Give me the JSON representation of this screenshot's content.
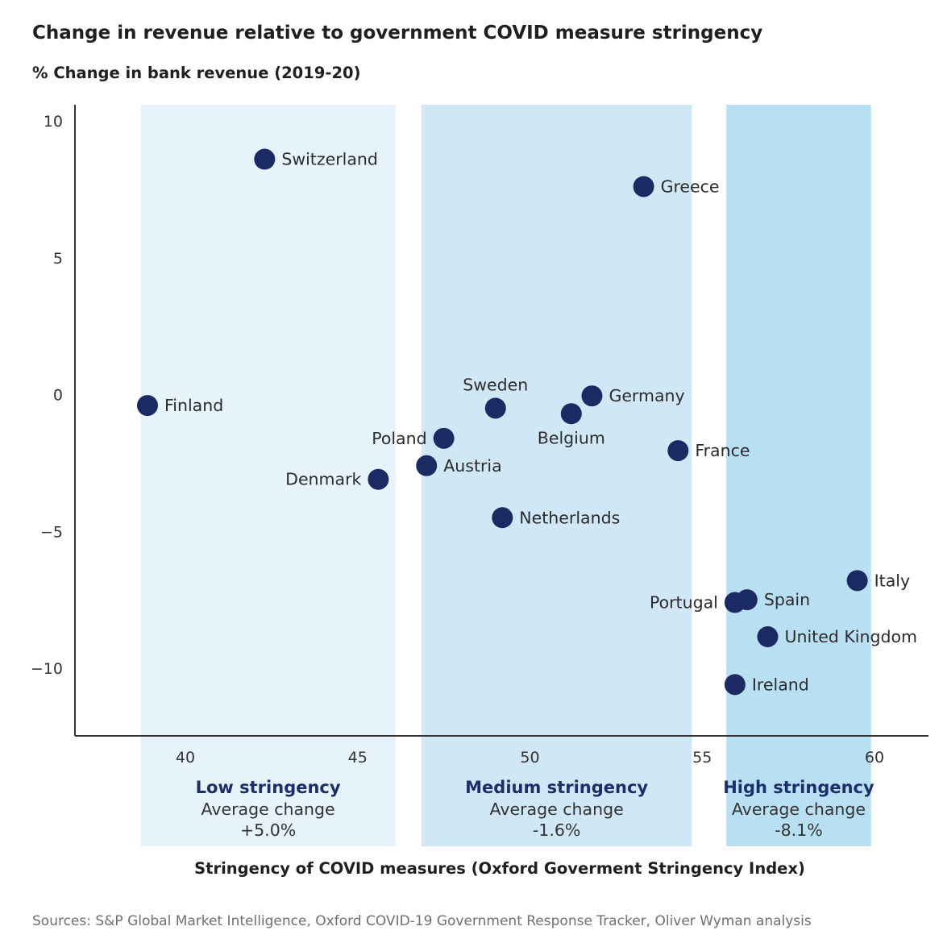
{
  "chart_data": {
    "type": "scatter",
    "title": "Change in revenue relative to government COVID measure stringency",
    "ylabel": "% Change in bank revenue (2019-20)",
    "xlabel": "Stringency of COVID measures (Oxford Goverment Stringency Index)",
    "xlim": [
      36.5,
      61.5
    ],
    "ylim": [
      -12.5,
      10.5
    ],
    "x_ticks": [
      40,
      45,
      50,
      55,
      60
    ],
    "x_tick_labels": [
      "40",
      "45",
      "50",
      "55",
      "60"
    ],
    "y_ticks": [
      10,
      5,
      0,
      -5,
      -10
    ],
    "y_tick_labels": [
      "10",
      "5",
      "0",
      "−5",
      "−10"
    ],
    "grid": false,
    "marker_color": "#1c2a63",
    "points": [
      {
        "label": "Switzerland",
        "x": 42.3,
        "y": 8.6,
        "label_pos": "right"
      },
      {
        "label": "Greece",
        "x": 53.3,
        "y": 7.6,
        "label_pos": "right"
      },
      {
        "label": "Finland",
        "x": 38.9,
        "y": -0.4,
        "label_pos": "right"
      },
      {
        "label": "Sweden",
        "x": 49.0,
        "y": -0.5,
        "label_pos": "above"
      },
      {
        "label": "Germany",
        "x": 51.8,
        "y": -0.05,
        "label_pos": "right"
      },
      {
        "label": "Belgium",
        "x": 51.2,
        "y": -0.7,
        "label_pos": "below"
      },
      {
        "label": "Poland",
        "x": 47.5,
        "y": -1.6,
        "label_pos": "left"
      },
      {
        "label": "France",
        "x": 54.3,
        "y": -2.05,
        "label_pos": "right"
      },
      {
        "label": "Austria",
        "x": 47.0,
        "y": -2.6,
        "label_pos": "right"
      },
      {
        "label": "Denmark",
        "x": 45.6,
        "y": -3.1,
        "label_pos": "left"
      },
      {
        "label": "Netherlands",
        "x": 49.2,
        "y": -4.5,
        "label_pos": "right"
      },
      {
        "label": "Italy",
        "x": 59.5,
        "y": -6.8,
        "label_pos": "right"
      },
      {
        "label": "Spain",
        "x": 56.3,
        "y": -7.5,
        "label_pos": "right"
      },
      {
        "label": "Portugal",
        "x": 55.95,
        "y": -7.6,
        "label_pos": "left"
      },
      {
        "label": "United Kingdom",
        "x": 56.9,
        "y": -8.85,
        "label_pos": "right"
      },
      {
        "label": "Ireland",
        "x": 55.95,
        "y": -10.6,
        "label_pos": "right"
      }
    ],
    "bands": [
      {
        "title": "Low stringency",
        "line1": "Average change",
        "line2": "+5.0%",
        "x_from": 38.7,
        "x_to": 46.1,
        "color": "#e7f3fb"
      },
      {
        "title": "Medium stringency",
        "line1": "Average change",
        "line2": "-1.6%",
        "x_from": 46.85,
        "x_to": 54.7,
        "color": "#d0e8f6"
      },
      {
        "title": "High stringency",
        "line1": "Average change",
        "line2": "-8.1%",
        "x_from": 55.7,
        "x_to": 59.9,
        "color": "#b9dff3"
      }
    ]
  },
  "source": "Sources: S&P Global Market Intelligence, Oxford COVID-19 Government Response Tracker, Oliver Wyman analysis"
}
